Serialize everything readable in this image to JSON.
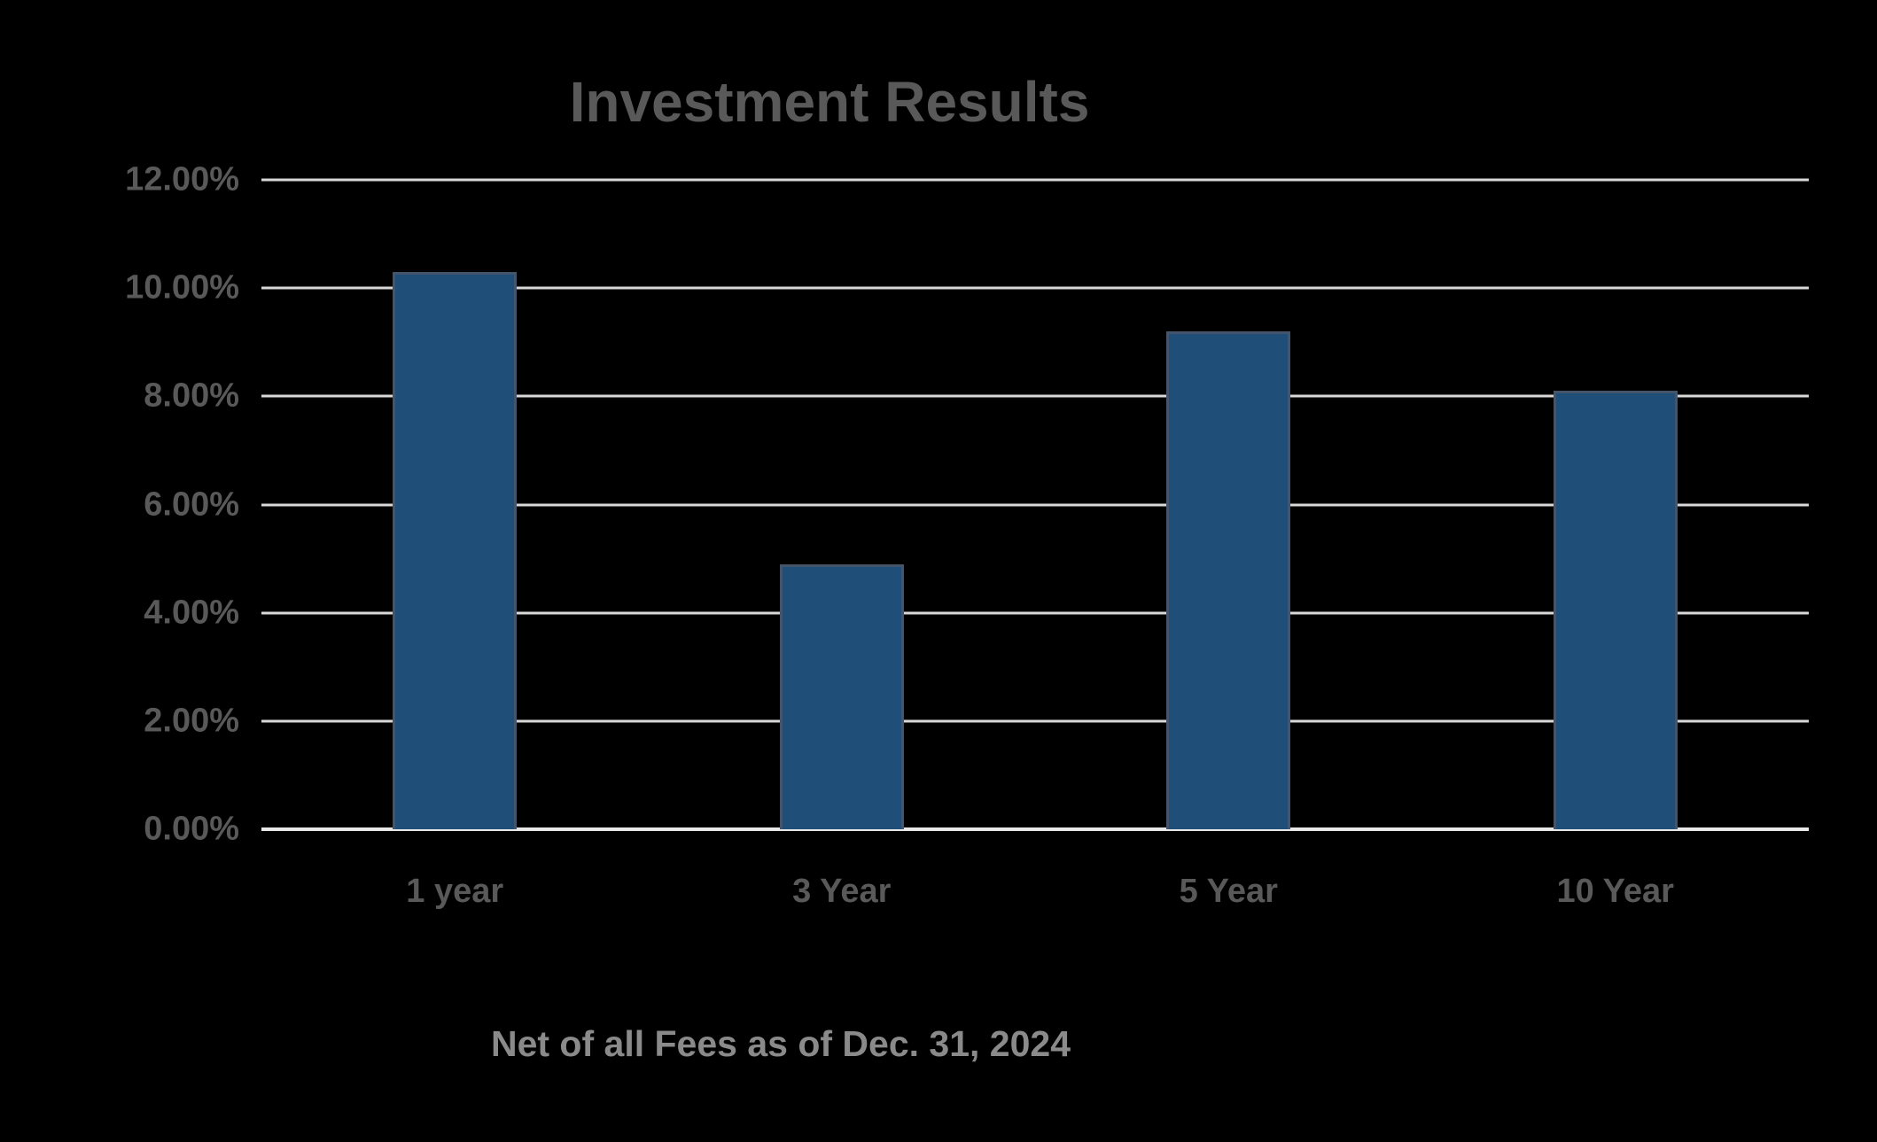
{
  "chart_data": {
    "type": "bar",
    "title": "Investment Results",
    "caption": "Net of all Fees as of Dec. 31, 2024",
    "categories": [
      "1 year",
      "3 Year",
      "5 Year",
      "10 Year"
    ],
    "values": [
      10.3,
      4.9,
      9.2,
      8.1
    ],
    "unit": "%",
    "ylim": [
      0,
      12
    ],
    "yticks": [
      0,
      2,
      4,
      6,
      8,
      10,
      12
    ],
    "ytick_labels": [
      "0.00%",
      "2.00%",
      "4.00%",
      "6.00%",
      "8.00%",
      "10.00%",
      "12.00%"
    ],
    "xlabel": "",
    "ylabel": "",
    "grid": true,
    "legend": "none",
    "colors": {
      "background": "#000000",
      "bar_fill": "#1F4E79",
      "bar_border": "#44546A",
      "gridline": "#D9D9D9",
      "axis_line": "#E8E8E8",
      "title_text": "#595959",
      "tick_text": "#595959",
      "caption_text": "#8A8A8A"
    }
  }
}
